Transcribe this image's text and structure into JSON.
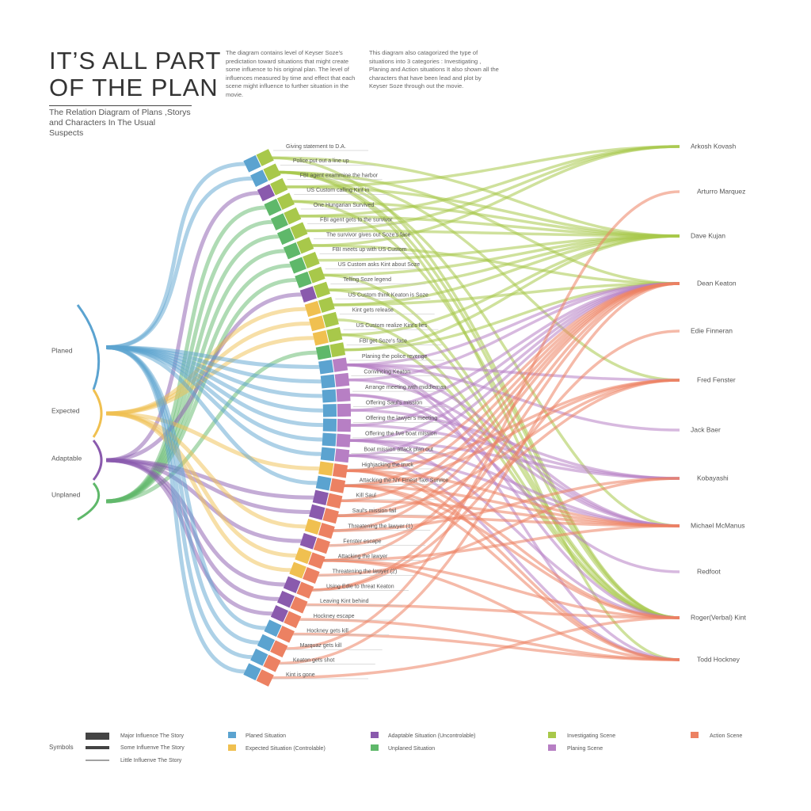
{
  "header": {
    "title_lines": [
      "IT’S ALL PART",
      "OF THE PLAN"
    ],
    "subtitle_lines": [
      "The Relation Diagram of Plans ,Storys",
      "and Characters In The Usual Suspects"
    ],
    "paragraphs": [
      "The diagram contains level of Keyser Soze's predictation toward situations that might create some influence to his original plan. The level of influences measured by time and effect that each scene might influence to further situation in the movie.",
      "This diagram also catagorized the type of situations into 3 categories : Investigating , Planing and Action situations It also shown all the characters that have been lead and plot by Keyser Soze through out the movie."
    ]
  },
  "categories": [
    "Planed",
    "Expected",
    "Adaptable",
    "Unplaned"
  ],
  "situations": [
    {
      "label": "Planed Situation",
      "color": "#5ba3d0"
    },
    {
      "label": "Expected Situation (Controlable)",
      "color": "#f0c050"
    },
    {
      "label": "Adaptable Situation (Uncontrolable)",
      "color": "#8a5aad"
    },
    {
      "label": "Unplaned Situation",
      "color": "#5fb86a"
    }
  ],
  "kinds": [
    {
      "label": "Investigating Scene",
      "color": "#a8c84a"
    },
    {
      "label": "Planing Scene",
      "color": "#b77fc4"
    },
    {
      "label": "Action Scene",
      "color": "#ec8162"
    }
  ],
  "symbols": {
    "label": "Symbols",
    "items": [
      "Major Influence The Story",
      "Some Influenve The Story",
      "Little Influenve The Story"
    ]
  },
  "characters": [
    "Arkosh Kovash",
    "Arturro Marquez",
    "Dave Kujan",
    "Dean Keaton",
    "Edie Finneran",
    "Fred Fenster",
    "Jack Baer",
    "Kobayashi",
    "Michael McManus",
    "Redfoot",
    "Roger(Verbal) Kint",
    "Todd Hockney"
  ],
  "scenes": [
    {
      "label": "Giving statement to D.A.",
      "situation": 0,
      "kind": 0,
      "characters": [
        10,
        2
      ]
    },
    {
      "label": "Police put out a line up",
      "situation": 0,
      "kind": 0,
      "characters": [
        3,
        5,
        8,
        10,
        11
      ]
    },
    {
      "label": "FBI agent exammine the harbor",
      "situation": 2,
      "kind": 0,
      "characters": [
        0,
        2
      ]
    },
    {
      "label": "US Custom calling Kint in",
      "situation": 3,
      "kind": 0,
      "characters": [
        2,
        10
      ]
    },
    {
      "label": "One Hungarian Survived",
      "situation": 3,
      "kind": 0,
      "characters": [
        0,
        2
      ]
    },
    {
      "label": "FBI agent gets to the survivor",
      "situation": 3,
      "kind": 0,
      "characters": [
        0,
        2
      ]
    },
    {
      "label": "The survivor gives out Soze's face",
      "situation": 3,
      "kind": 0,
      "characters": [
        0,
        3
      ]
    },
    {
      "label": "FBI meets up with US Custom",
      "situation": 3,
      "kind": 0,
      "characters": [
        2
      ]
    },
    {
      "label": "US Custom asks Kint about Soze",
      "situation": 3,
      "kind": 0,
      "characters": [
        2,
        10
      ]
    },
    {
      "label": "Telling Soze legend",
      "situation": 2,
      "kind": 0,
      "characters": [
        10,
        2
      ]
    },
    {
      "label": "US Custom think Keaton is Soze",
      "situation": 1,
      "kind": 0,
      "characters": [
        2,
        3
      ]
    },
    {
      "label": "Kint gets release",
      "situation": 1,
      "kind": 0,
      "characters": [
        10
      ]
    },
    {
      "label": "US Custom realize Kint's lies",
      "situation": 1,
      "kind": 0,
      "characters": [
        2,
        10
      ]
    },
    {
      "label": "FBI get Soze's face",
      "situation": 3,
      "kind": 0,
      "characters": [
        2,
        3
      ]
    },
    {
      "label": "Planing the police revenge",
      "situation": 0,
      "kind": 1,
      "characters": [
        3,
        5,
        6,
        8,
        10,
        11
      ]
    },
    {
      "label": "Convincing Keaton",
      "situation": 0,
      "kind": 1,
      "characters": [
        3,
        8
      ]
    },
    {
      "label": "Arrange meeting with middleman",
      "situation": 0,
      "kind": 1,
      "characters": [
        8,
        9
      ]
    },
    {
      "label": "Offering Saul's mission",
      "situation": 0,
      "kind": 1,
      "characters": [
        7,
        3
      ]
    },
    {
      "label": "Offering the lawyer's meeting",
      "situation": 0,
      "kind": 1,
      "characters": [
        7,
        3
      ]
    },
    {
      "label": "Offering the five boat mission",
      "situation": 0,
      "kind": 1,
      "characters": [
        7,
        3,
        8,
        10
      ]
    },
    {
      "label": "Boat mission attack plan out",
      "situation": 0,
      "kind": 1,
      "characters": [
        3,
        8,
        11
      ]
    },
    {
      "label": "Highjacking the truck",
      "situation": 1,
      "kind": 2,
      "characters": [
        3,
        5,
        8,
        10,
        11
      ]
    },
    {
      "label": "Attacking the NY Finest Taxi Survice",
      "situation": 0,
      "kind": 2,
      "characters": [
        3,
        5,
        8,
        10,
        11
      ]
    },
    {
      "label": "Kill Saul",
      "situation": 2,
      "kind": 2,
      "characters": [
        3,
        8
      ]
    },
    {
      "label": "Saul's mission fail",
      "situation": 2,
      "kind": 2,
      "characters": [
        3,
        8,
        5
      ]
    },
    {
      "label": "Threatening the lawyer (1)",
      "situation": 1,
      "kind": 2,
      "characters": [
        7,
        3
      ]
    },
    {
      "label": "Fenster escape",
      "situation": 2,
      "kind": 2,
      "characters": [
        5
      ]
    },
    {
      "label": "Attacking the lawyer",
      "situation": 1,
      "kind": 2,
      "characters": [
        3,
        8,
        11,
        10
      ]
    },
    {
      "label": "Threatening the lawyer (2)",
      "situation": 1,
      "kind": 2,
      "characters": [
        7
      ]
    },
    {
      "label": "Using Edie to threat Keaton",
      "situation": 2,
      "kind": 2,
      "characters": [
        4,
        3
      ]
    },
    {
      "label": "Leaving Kint behind",
      "situation": 2,
      "kind": 2,
      "characters": [
        10
      ]
    },
    {
      "label": "Hockney escape",
      "situation": 2,
      "kind": 2,
      "characters": [
        11
      ]
    },
    {
      "label": "Hockney gets kill",
      "situation": 0,
      "kind": 2,
      "characters": [
        11
      ]
    },
    {
      "label": "Marquaz gets kill",
      "situation": 0,
      "kind": 2,
      "characters": [
        1
      ]
    },
    {
      "label": "Keaton gets shot",
      "situation": 0,
      "kind": 2,
      "characters": [
        3
      ]
    },
    {
      "label": "Kint is gone",
      "situation": 0,
      "kind": 2,
      "characters": [
        10
      ]
    }
  ]
}
